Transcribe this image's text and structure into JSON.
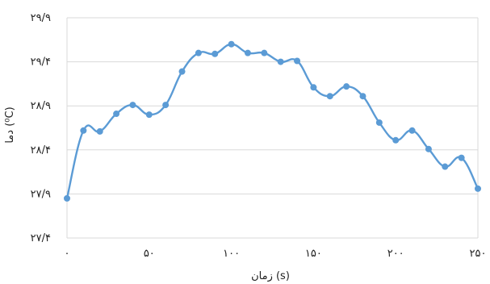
{
  "chart_data": {
    "type": "line",
    "title": "",
    "xlabel": "زمان (s)",
    "ylabel": "دما (⁰C)",
    "xlim": [
      0,
      250
    ],
    "ylim": [
      27.4,
      29.9
    ],
    "x_ticks": [
      0,
      50,
      100,
      150,
      200,
      250
    ],
    "x_tick_labels": [
      "۰",
      "۵۰",
      "۱۰۰",
      "۱۵۰",
      "۲۰۰",
      "۲۵۰"
    ],
    "y_ticks": [
      27.4,
      27.9,
      28.4,
      28.9,
      29.4,
      29.9
    ],
    "y_tick_labels": [
      "۲۷/۴",
      "۲۷/۹",
      "۲۸/۴",
      "۲۸/۹",
      "۲۹/۴",
      "۲۹/۹"
    ],
    "grid": true,
    "line_color": "#5b9bd5",
    "series": [
      {
        "name": "",
        "x": [
          0,
          10,
          20,
          30,
          40,
          50,
          60,
          70,
          80,
          90,
          100,
          110,
          120,
          130,
          140,
          150,
          160,
          170,
          180,
          190,
          200,
          210,
          220,
          230,
          240,
          250
        ],
        "y": [
          27.85,
          28.62,
          28.61,
          28.81,
          28.91,
          28.8,
          28.91,
          29.29,
          29.5,
          29.49,
          29.6,
          29.5,
          29.5,
          29.4,
          29.41,
          29.11,
          29.01,
          29.12,
          29.01,
          28.71,
          28.51,
          28.62,
          28.41,
          28.21,
          28.31,
          27.96
        ]
      }
    ]
  }
}
